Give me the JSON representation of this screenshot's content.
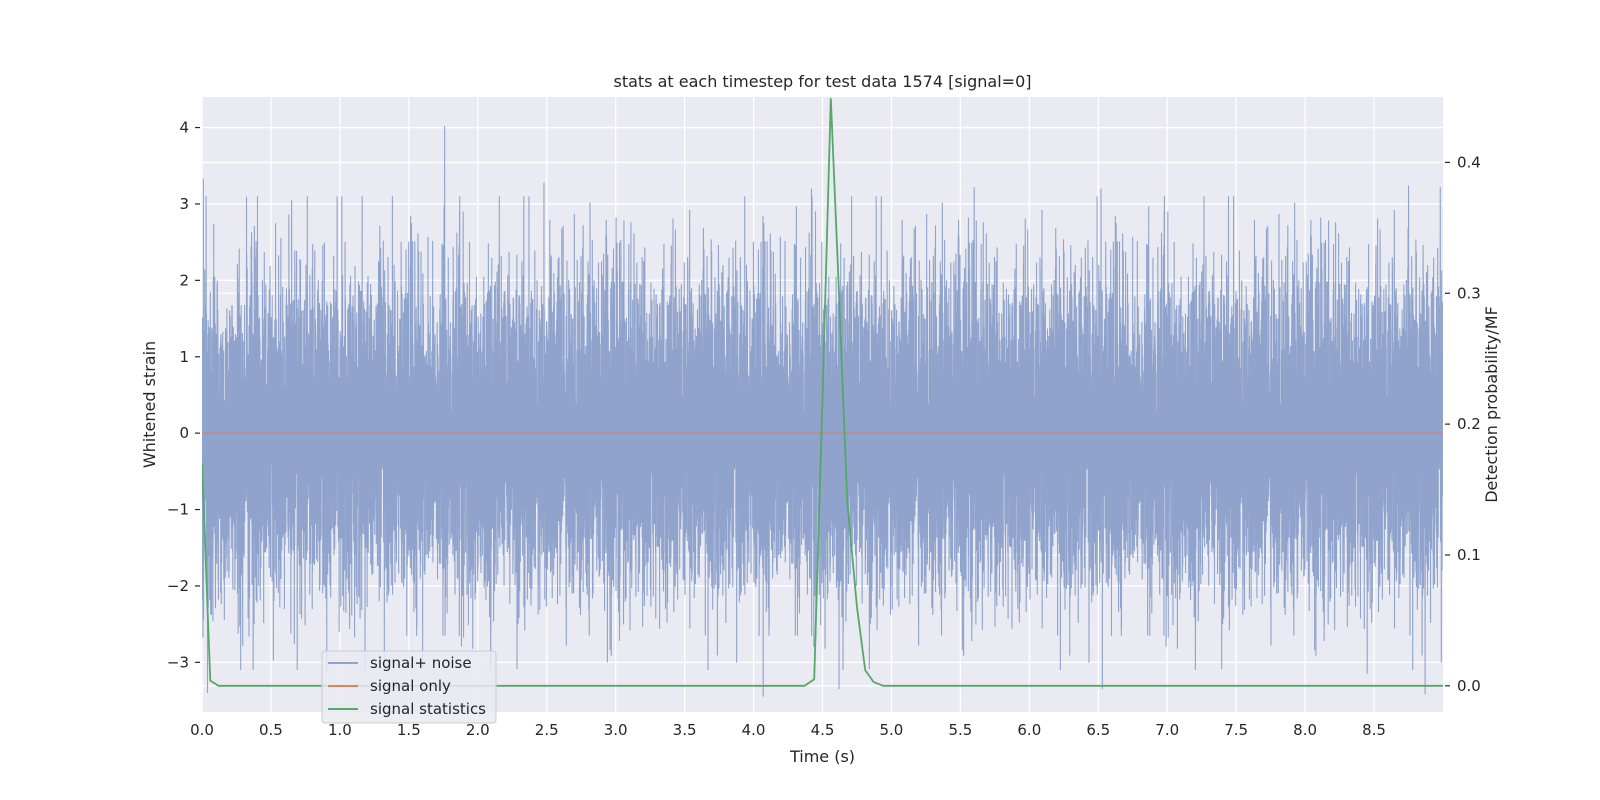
{
  "chart_data": {
    "type": "line",
    "title": "stats at each timestep for test data 1574 [signal=0]",
    "xlabel": "Time (s)",
    "ylabel": "Whitened strain",
    "y2label": "Detection probability/MF",
    "xlim": [
      0.0,
      9.0
    ],
    "ylim": [
      -3.65,
      4.4
    ],
    "y2lim": [
      -0.02,
      0.45
    ],
    "xticks": [
      0.0,
      0.5,
      1.0,
      1.5,
      2.0,
      2.5,
      3.0,
      3.5,
      4.0,
      4.5,
      5.0,
      5.5,
      6.0,
      6.5,
      7.0,
      7.5,
      8.0,
      8.5
    ],
    "xtick_labels": [
      "0.0",
      "0.5",
      "1.0",
      "1.5",
      "2.0",
      "2.5",
      "3.0",
      "3.5",
      "4.0",
      "4.5",
      "5.0",
      "5.5",
      "6.0",
      "6.5",
      "7.0",
      "7.5",
      "8.0",
      "8.5"
    ],
    "yticks": [
      -3,
      -2,
      -1,
      0,
      1,
      2,
      3,
      4
    ],
    "ytick_labels": [
      "−3",
      "−2",
      "−1",
      "0",
      "1",
      "2",
      "3",
      "4"
    ],
    "y2ticks": [
      0.0,
      0.1,
      0.2,
      0.3,
      0.4
    ],
    "y2tick_labels": [
      "0.0",
      "0.1",
      "0.2",
      "0.3",
      "0.4"
    ],
    "grid": true,
    "legend_position": "lower-left",
    "series": [
      {
        "name": "signal+ noise",
        "axis": "left",
        "color": "#8fa3cc",
        "kind": "noise",
        "sample_rate_hz": 2048,
        "std": 1.0,
        "peak_values": [
          {
            "x": 0.01,
            "y": 3.33
          },
          {
            "x": 0.04,
            "y": -3.4
          },
          {
            "x": 0.65,
            "y": 3.05
          },
          {
            "x": 1.76,
            "y": 4.02
          },
          {
            "x": 1.6,
            "y": -3.05
          },
          {
            "x": 2.48,
            "y": 3.28
          },
          {
            "x": 2.94,
            "y": -3.0
          },
          {
            "x": 4.07,
            "y": -3.45
          },
          {
            "x": 4.42,
            "y": 3.2
          },
          {
            "x": 4.62,
            "y": -3.35
          },
          {
            "x": 5.6,
            "y": 3.22
          },
          {
            "x": 6.52,
            "y": 3.2
          },
          {
            "x": 6.53,
            "y": -3.35
          },
          {
            "x": 8.45,
            "y": -3.15
          },
          {
            "x": 8.75,
            "y": 3.24
          },
          {
            "x": 8.87,
            "y": -3.42
          },
          {
            "x": 8.98,
            "y": 3.22
          }
        ]
      },
      {
        "name": "signal only",
        "axis": "left",
        "color": "#dd8452",
        "x": [
          0.0,
          9.0
        ],
        "y": [
          0.0,
          0.0
        ]
      },
      {
        "name": "signal statistics",
        "axis": "right",
        "color": "#55a868",
        "x": [
          0.0,
          0.06,
          0.12,
          0.5,
          1.0,
          2.0,
          3.0,
          4.0,
          4.37,
          4.44,
          4.5,
          4.56,
          4.62,
          4.68,
          4.75,
          4.81,
          4.87,
          4.94,
          5.0,
          6.0,
          7.0,
          8.0,
          9.0
        ],
        "y": [
          0.17,
          0.004,
          0.0,
          0.0,
          0.0,
          0.0,
          0.0,
          0.0,
          0.0,
          0.005,
          0.22,
          0.449,
          0.3,
          0.14,
          0.06,
          0.012,
          0.003,
          0.0,
          0.0,
          0.0,
          0.0,
          0.0,
          0.0
        ]
      }
    ]
  }
}
